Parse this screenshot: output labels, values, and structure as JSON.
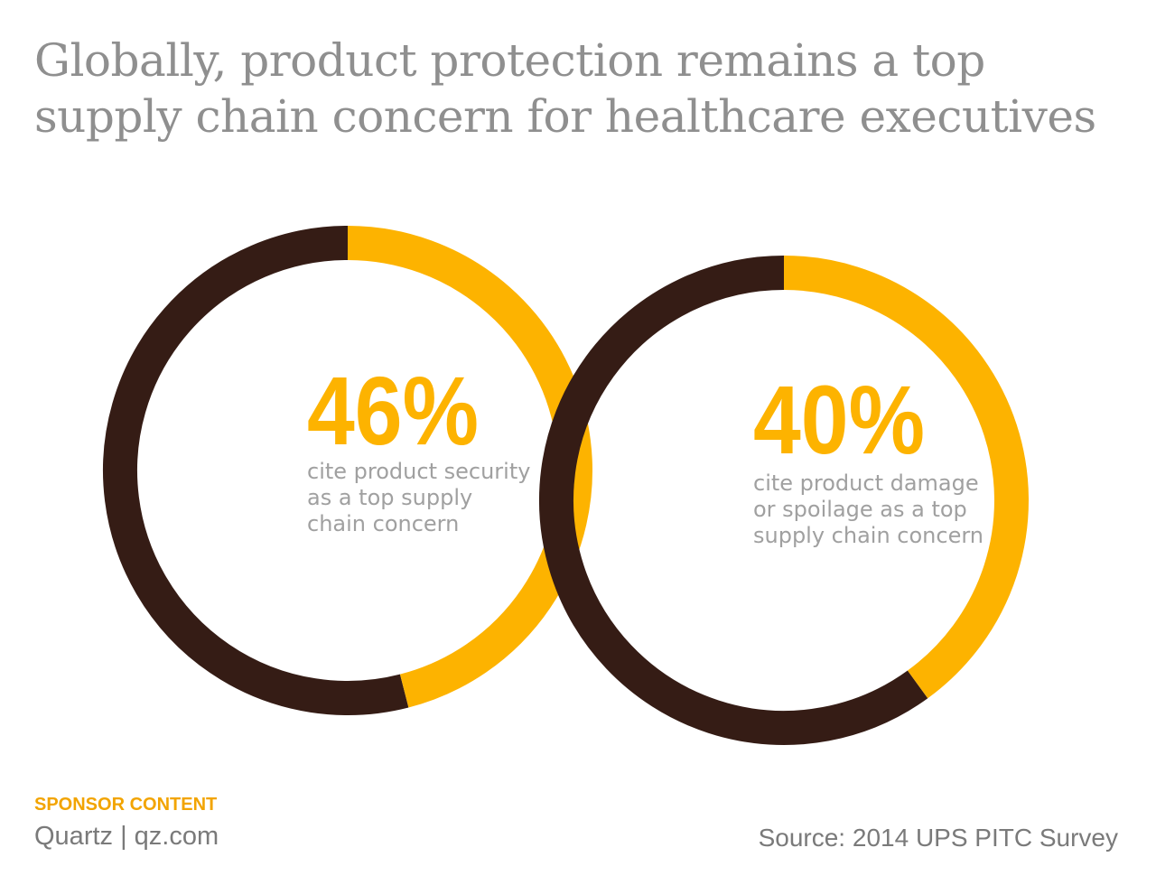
{
  "title": {
    "line1": "Globally, product protection remains a top",
    "line2": "supply chain concern for healthcare executives"
  },
  "colors": {
    "highlight": "#fdb300",
    "remainder": "#351c15",
    "label_text": "#a0a0a0",
    "title_text": "#8f8f8f"
  },
  "chart_data": [
    {
      "type": "pie",
      "style": "donut",
      "value": 46,
      "value_label": "46%",
      "caption_lines": [
        "cite product security",
        "as a top supply",
        "chain concern"
      ]
    },
    {
      "type": "pie",
      "style": "donut",
      "value": 40,
      "value_label": "40%",
      "caption_lines": [
        "cite product damage",
        "or spoilage as a top",
        "supply chain concern"
      ]
    }
  ],
  "footer": {
    "sponsor": "SPONSOR CONTENT",
    "brand": "Quartz | qz.com",
    "source": "Source: 2014 UPS PITC Survey"
  }
}
